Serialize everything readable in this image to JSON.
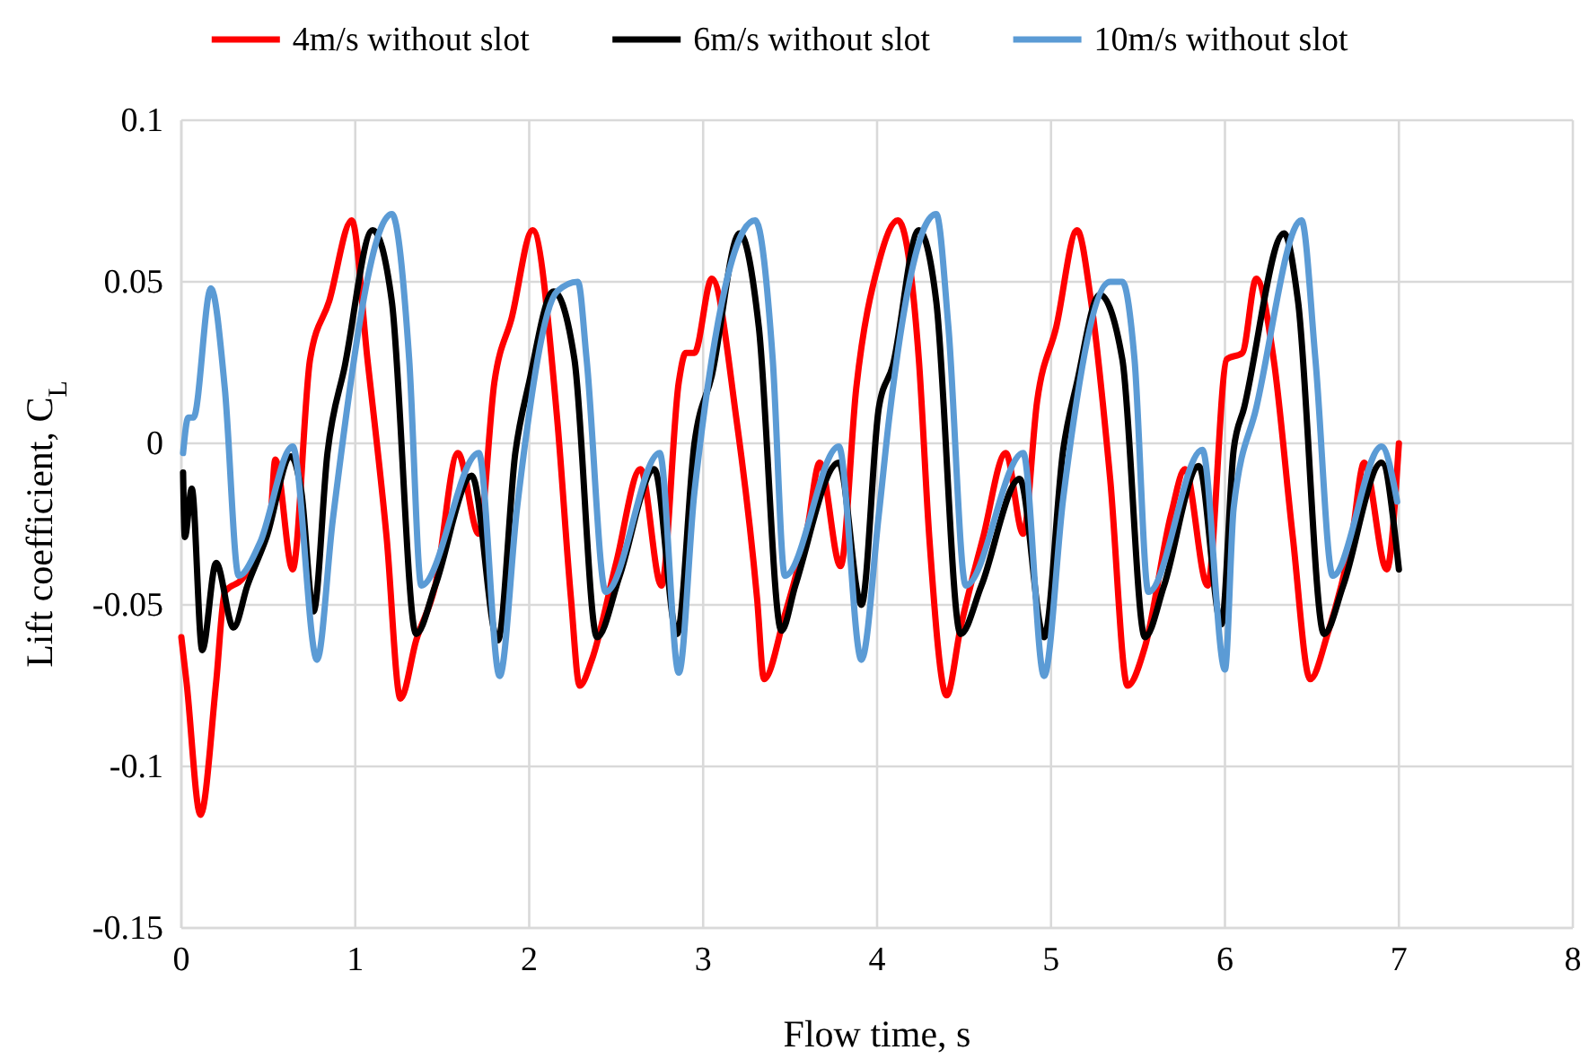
{
  "chart_data": {
    "type": "line",
    "xlabel": "Flow time, s",
    "ylabel": "Lift coefficient, C$_{L}$",
    "xlim": [
      0,
      8
    ],
    "xticks": [
      0,
      1,
      2,
      3,
      4,
      5,
      6,
      7,
      8
    ],
    "ylim": [
      -0.15,
      0.1
    ],
    "yticks": [
      -0.15,
      -0.1,
      -0.05,
      0,
      0.05,
      0.1
    ],
    "grid": true,
    "legend": "top",
    "marker": "none",
    "line_style": "solid",
    "series": [
      {
        "name": "4m/s without slot",
        "color": "#ff0000",
        "x": [
          0,
          0.03,
          0.11,
          0.2,
          0.25,
          0.35,
          0.51,
          0.54,
          0.64,
          0.74,
          0.85,
          0.98,
          1.07,
          1.18,
          1.26,
          1.35,
          1.46,
          1.59,
          1.71,
          1.8,
          1.9,
          2.02,
          2.16,
          2.24,
          2.29,
          2.36,
          2.5,
          2.64,
          2.76,
          2.86,
          2.9,
          2.95,
          3.05,
          3.19,
          3.31,
          3.35,
          3.47,
          3.6,
          3.67,
          3.79,
          3.88,
          4.01,
          4.12,
          4.24,
          4.3,
          4.4,
          4.48,
          4.61,
          4.74,
          4.84,
          4.92,
          5.03,
          5.15,
          5.23,
          5.34,
          5.44,
          5.54,
          5.69,
          5.77,
          5.9,
          6.01,
          6.1,
          6.18,
          6.28,
          6.39,
          6.49,
          6.59,
          6.73,
          6.8,
          6.93,
          7.0
        ],
        "values": [
          -0.06,
          -0.074,
          -0.115,
          -0.074,
          -0.046,
          -0.042,
          -0.024,
          -0.005,
          -0.039,
          0.026,
          0.044,
          0.069,
          0.026,
          -0.029,
          -0.079,
          -0.061,
          -0.044,
          -0.003,
          -0.028,
          0.019,
          0.039,
          0.066,
          0.008,
          -0.048,
          -0.075,
          -0.067,
          -0.037,
          -0.008,
          -0.044,
          0.019,
          0.028,
          0.028,
          0.051,
          0.008,
          -0.048,
          -0.073,
          -0.053,
          -0.026,
          -0.006,
          -0.038,
          0.017,
          0.056,
          0.069,
          0.026,
          -0.029,
          -0.078,
          -0.057,
          -0.029,
          -0.003,
          -0.028,
          0.013,
          0.036,
          0.066,
          0.044,
          -0.011,
          -0.075,
          -0.063,
          -0.022,
          -0.008,
          -0.044,
          0.026,
          0.028,
          0.051,
          0.026,
          -0.029,
          -0.073,
          -0.059,
          -0.029,
          -0.006,
          -0.039,
          0.0
        ]
      },
      {
        "name": "6m/s without slot",
        "color": "#000000",
        "x": [
          0.01,
          0.02,
          0.06,
          0.12,
          0.2,
          0.3,
          0.38,
          0.49,
          0.63,
          0.69,
          0.76,
          0.84,
          0.94,
          1.1,
          1.21,
          1.35,
          1.46,
          1.67,
          1.82,
          1.92,
          2.0,
          2.14,
          2.26,
          2.39,
          2.52,
          2.72,
          2.85,
          2.95,
          3.05,
          3.21,
          3.32,
          3.45,
          3.53,
          3.78,
          3.91,
          4.01,
          4.09,
          4.24,
          4.34,
          4.48,
          4.6,
          4.82,
          4.96,
          5.07,
          5.15,
          5.28,
          5.41,
          5.54,
          5.65,
          5.85,
          5.98,
          6.05,
          6.11,
          6.34,
          6.42,
          6.57,
          6.68,
          6.9,
          7.0
        ],
        "values": [
          -0.009,
          -0.029,
          -0.014,
          -0.064,
          -0.037,
          -0.057,
          -0.044,
          -0.029,
          -0.004,
          -0.015,
          -0.052,
          -0.003,
          0.024,
          0.066,
          0.044,
          -0.059,
          -0.044,
          -0.01,
          -0.061,
          -0.003,
          0.019,
          0.047,
          0.026,
          -0.06,
          -0.041,
          -0.008,
          -0.059,
          0.0,
          0.021,
          0.065,
          0.036,
          -0.058,
          -0.044,
          -0.006,
          -0.05,
          0.011,
          0.024,
          0.066,
          0.044,
          -0.059,
          -0.044,
          -0.011,
          -0.06,
          -0.002,
          0.019,
          0.046,
          0.026,
          -0.06,
          -0.044,
          -0.007,
          -0.056,
          -0.002,
          0.011,
          0.065,
          0.044,
          -0.059,
          -0.044,
          -0.006,
          -0.039
        ]
      },
      {
        "name": "10m/s without slot",
        "color": "#5b9bd5",
        "x": [
          0.01,
          0.04,
          0.07,
          0.17,
          0.25,
          0.33,
          0.45,
          0.64,
          0.78,
          0.87,
          1.21,
          1.31,
          1.38,
          1.71,
          1.83,
          1.93,
          2.16,
          2.28,
          2.33,
          2.44,
          2.75,
          2.86,
          2.95,
          3.3,
          3.4,
          3.47,
          3.78,
          3.91,
          4.01,
          4.07,
          4.34,
          4.41,
          4.51,
          4.84,
          4.96,
          5.07,
          5.34,
          5.41,
          5.48,
          5.56,
          5.87,
          6.0,
          6.05,
          6.18,
          6.44,
          6.52,
          6.62,
          6.9,
          6.99
        ],
        "values": [
          -0.003,
          0.008,
          0.008,
          0.048,
          0.017,
          -0.041,
          -0.031,
          -0.001,
          -0.067,
          -0.024,
          0.071,
          0.026,
          -0.044,
          -0.003,
          -0.072,
          -0.02,
          0.047,
          0.05,
          0.026,
          -0.046,
          -0.003,
          -0.071,
          -0.015,
          0.069,
          0.026,
          -0.041,
          -0.001,
          -0.067,
          -0.022,
          0.008,
          0.071,
          0.036,
          -0.044,
          -0.003,
          -0.072,
          -0.017,
          0.05,
          0.05,
          0.026,
          -0.046,
          -0.002,
          -0.07,
          -0.02,
          0.011,
          0.069,
          0.026,
          -0.041,
          -0.001,
          -0.018
        ]
      }
    ]
  }
}
